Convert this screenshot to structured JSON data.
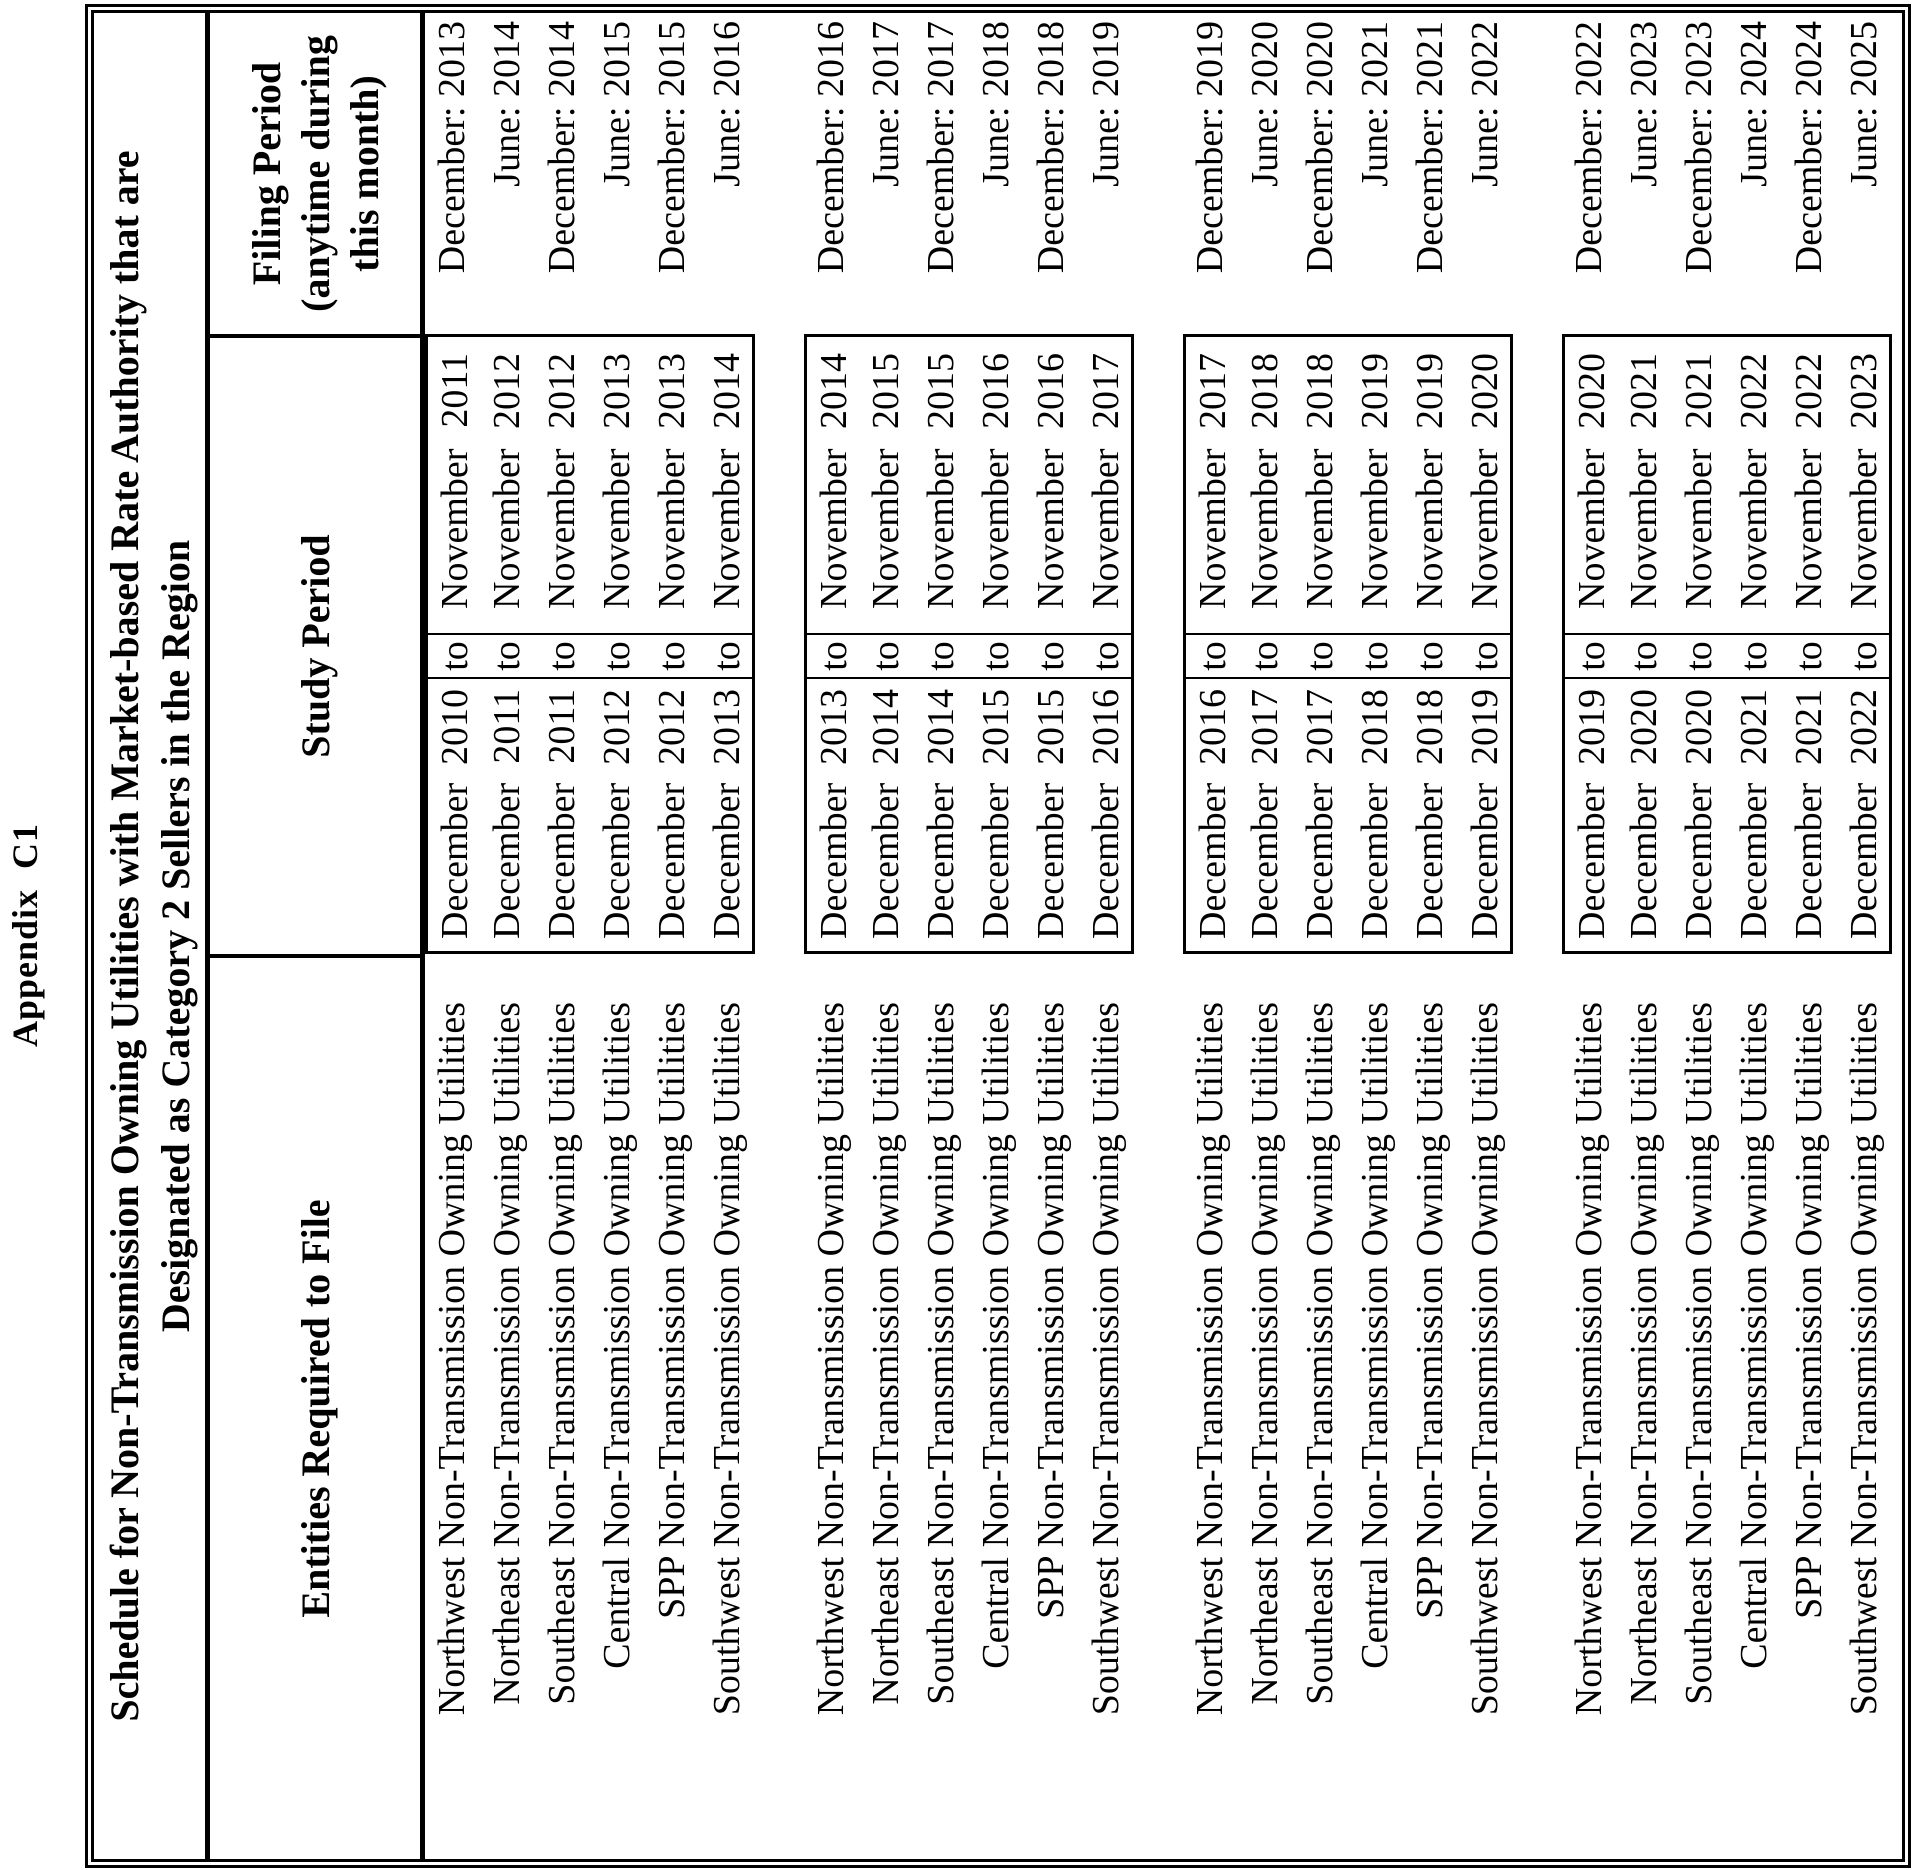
{
  "ink_color": "#000000",
  "paper_color": "#ffffff",
  "appendix_label": "Appendix  C1",
  "title": {
    "line1": "Schedule for Non-Transmission Owning Utilities with Market-based Rate Authority that are",
    "line2": "Designated as Category 2 Sellers in the Region"
  },
  "headers": {
    "entities": "Entities Required to File",
    "study": "Study Period",
    "filing_line1": "Filing Period",
    "filing_line2": "(anytime during",
    "filing_line3": "this month)"
  },
  "groups": [
    {
      "rows": [
        {
          "entity": "Northwest Non-Transmission Owning Utilities",
          "study_start_month": "December",
          "study_start_year": "2010",
          "to": "to",
          "study_end_month": "November",
          "study_end_year": "2011",
          "filing": "December: 2013"
        },
        {
          "entity": "Northeast Non-Transmission Owning Utilities",
          "study_start_month": "December",
          "study_start_year": "2011",
          "to": "to",
          "study_end_month": "November",
          "study_end_year": "2012",
          "filing": "June: 2014"
        },
        {
          "entity": "Southeast Non-Transmission Owning Utilities",
          "study_start_month": "December",
          "study_start_year": "2011",
          "to": "to",
          "study_end_month": "November",
          "study_end_year": "2012",
          "filing": "December: 2014"
        },
        {
          "entity": "Central Non-Transmission Owning Utilities",
          "study_start_month": "December",
          "study_start_year": "2012",
          "to": "to",
          "study_end_month": "November",
          "study_end_year": "2013",
          "filing": "June: 2015"
        },
        {
          "entity": "SPP Non-Transmission Owning Utilities",
          "study_start_month": "December",
          "study_start_year": "2012",
          "to": "to",
          "study_end_month": "November",
          "study_end_year": "2013",
          "filing": "December: 2015"
        },
        {
          "entity": "Southwest Non-Transmission Owning Utilities",
          "study_start_month": "December",
          "study_start_year": "2013",
          "to": "to",
          "study_end_month": "November",
          "study_end_year": "2014",
          "filing": "June: 2016"
        }
      ]
    },
    {
      "rows": [
        {
          "entity": "Northwest Non-Transmission Owning Utilities",
          "study_start_month": "December",
          "study_start_year": "2013",
          "to": "to",
          "study_end_month": "November",
          "study_end_year": "2014",
          "filing": "December: 2016"
        },
        {
          "entity": "Northeast Non-Transmission Owning Utilities",
          "study_start_month": "December",
          "study_start_year": "2014",
          "to": "to",
          "study_end_month": "November",
          "study_end_year": "2015",
          "filing": "June: 2017"
        },
        {
          "entity": "Southeast Non-Transmission Owning Utilities",
          "study_start_month": "December",
          "study_start_year": "2014",
          "to": "to",
          "study_end_month": "November",
          "study_end_year": "2015",
          "filing": "December: 2017"
        },
        {
          "entity": "Central Non-Transmission Owning Utilities",
          "study_start_month": "December",
          "study_start_year": "2015",
          "to": "to",
          "study_end_month": "November",
          "study_end_year": "2016",
          "filing": "June: 2018"
        },
        {
          "entity": "SPP Non-Transmission Owning Utilities",
          "study_start_month": "December",
          "study_start_year": "2015",
          "to": "to",
          "study_end_month": "November",
          "study_end_year": "2016",
          "filing": "December: 2018"
        },
        {
          "entity": "Southwest Non-Transmission Owning Utilities",
          "study_start_month": "December",
          "study_start_year": "2016",
          "to": "to",
          "study_end_month": "November",
          "study_end_year": "2017",
          "filing": "June: 2019"
        }
      ]
    },
    {
      "rows": [
        {
          "entity": "Northwest Non-Transmission Owning Utilities",
          "study_start_month": "December",
          "study_start_year": "2016",
          "to": "to",
          "study_end_month": "November",
          "study_end_year": "2017",
          "filing": "December: 2019"
        },
        {
          "entity": "Northeast Non-Transmission Owning Utilities",
          "study_start_month": "December",
          "study_start_year": "2017",
          "to": "to",
          "study_end_month": "November",
          "study_end_year": "2018",
          "filing": "June: 2020"
        },
        {
          "entity": "Southeast Non-Transmission Owning Utilities",
          "study_start_month": "December",
          "study_start_year": "2017",
          "to": "to",
          "study_end_month": "November",
          "study_end_year": "2018",
          "filing": "December: 2020"
        },
        {
          "entity": "Central Non-Transmission Owning Utilities",
          "study_start_month": "December",
          "study_start_year": "2018",
          "to": "to",
          "study_end_month": "November",
          "study_end_year": "2019",
          "filing": "June: 2021"
        },
        {
          "entity": "SPP Non-Transmission Owning Utilities",
          "study_start_month": "December",
          "study_start_year": "2018",
          "to": "to",
          "study_end_month": "November",
          "study_end_year": "2019",
          "filing": "December: 2021"
        },
        {
          "entity": "Southwest Non-Transmission Owning Utilities",
          "study_start_month": "December",
          "study_start_year": "2019",
          "to": "to",
          "study_end_month": "November",
          "study_end_year": "2020",
          "filing": "June: 2022"
        }
      ]
    },
    {
      "rows": [
        {
          "entity": "Northwest Non-Transmission Owning Utilities",
          "study_start_month": "December",
          "study_start_year": "2019",
          "to": "to",
          "study_end_month": "November",
          "study_end_year": "2020",
          "filing": "December: 2022"
        },
        {
          "entity": "Northeast Non-Transmission Owning Utilities",
          "study_start_month": "December",
          "study_start_year": "2020",
          "to": "to",
          "study_end_month": "November",
          "study_end_year": "2021",
          "filing": "June: 2023"
        },
        {
          "entity": "Southeast Non-Transmission Owning Utilities",
          "study_start_month": "December",
          "study_start_year": "2020",
          "to": "to",
          "study_end_month": "November",
          "study_end_year": "2021",
          "filing": "December: 2023"
        },
        {
          "entity": "Central Non-Transmission Owning Utilities",
          "study_start_month": "December",
          "study_start_year": "2021",
          "to": "to",
          "study_end_month": "November",
          "study_end_year": "2022",
          "filing": "June: 2024"
        },
        {
          "entity": "SPP Non-Transmission Owning Utilities",
          "study_start_month": "December",
          "study_start_year": "2021",
          "to": "to",
          "study_end_month": "November",
          "study_end_year": "2022",
          "filing": "December: 2024"
        },
        {
          "entity": "Southwest Non-Transmission Owning Utilities",
          "study_start_month": "December",
          "study_start_year": "2022",
          "to": "to",
          "study_end_month": "November",
          "study_end_year": "2023",
          "filing": "June: 2025"
        }
      ]
    }
  ]
}
